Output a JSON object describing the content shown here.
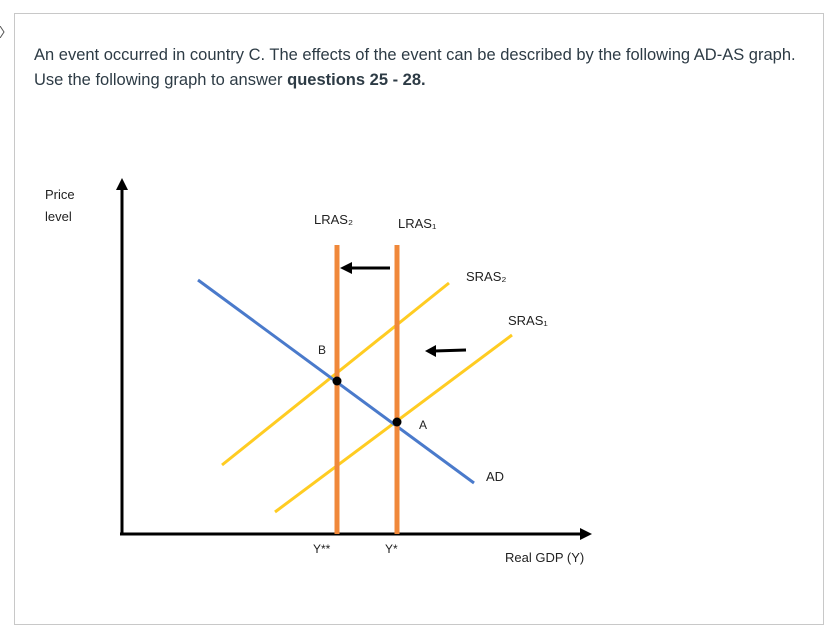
{
  "question": {
    "text": "An event occurred in country C. The effects of the event can be described by the following AD-AS graph. Use the following graph to answer ",
    "bold": "questions 25 - 28."
  },
  "diagram": {
    "y_axis_label_line1": "Price",
    "y_axis_label_line2": "level",
    "x_axis_label": "Real GDP (Y)",
    "curves": {
      "lras2": "LRAS₂",
      "lras1": "LRAS₁",
      "sras2": "SRAS₂",
      "sras1": "SRAS₁",
      "ad": "AD"
    },
    "points": {
      "b": "B",
      "a": "A"
    },
    "ticks": {
      "y_double_star": "Y**",
      "y_star": "Y*"
    },
    "colors": {
      "axis": "#000000",
      "lras": "#f0883a",
      "sras": "#ffcc22",
      "ad": "#4a7acb",
      "arrow": "#000000"
    }
  }
}
